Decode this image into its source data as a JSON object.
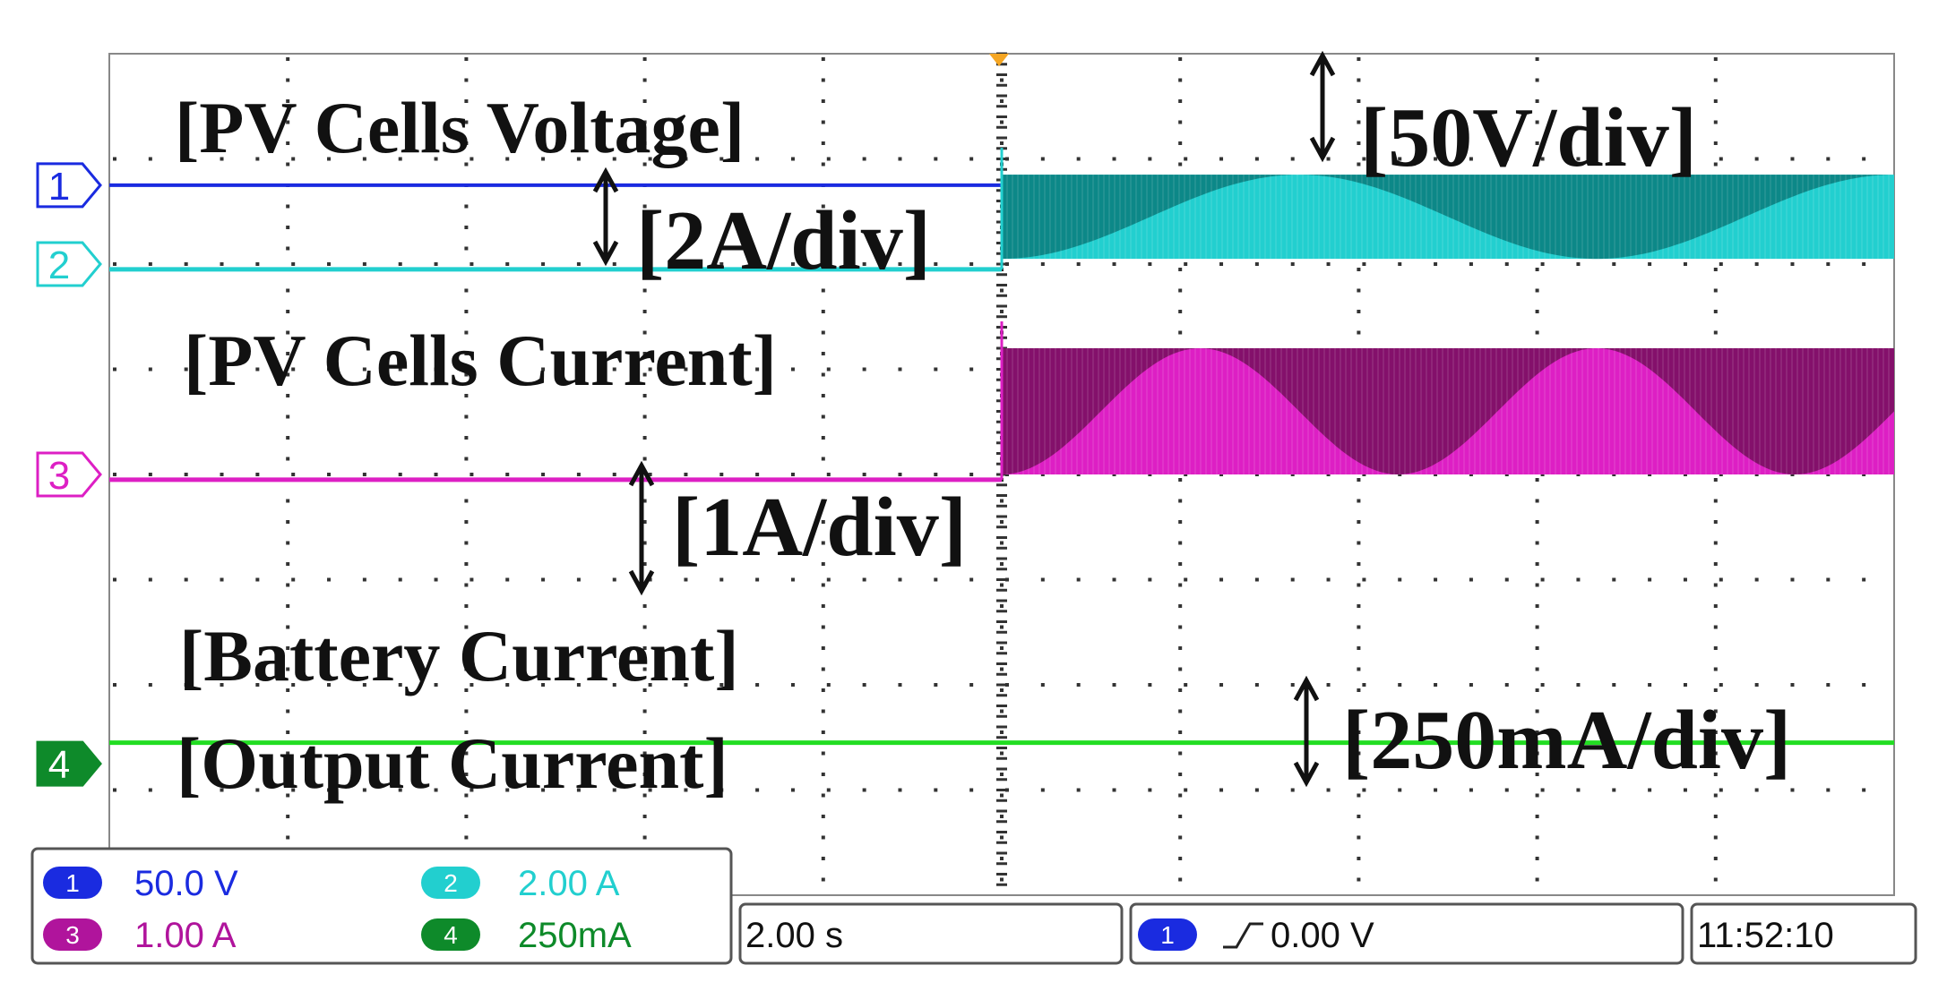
{
  "chart_data": {
    "type": "line",
    "title": "",
    "xlabel": "",
    "ylabel": "",
    "grid": true,
    "divisions": {
      "x": 10,
      "y": 8
    },
    "trigger_division": 5,
    "channels": [
      {
        "id": "1",
        "name": "PV Cells Voltage",
        "scale": "50.0 V",
        "label": "[PV Cells Voltage]",
        "div_label": "[50V/div]",
        "color": "#1a2be0",
        "dark_color": "#0b1a9a",
        "offset_div": 6.75,
        "before": {
          "level_div": 0
        },
        "after": {
          "level_div": 0
        }
      },
      {
        "id": "2",
        "name": "PV Cells Current",
        "scale": "2.00 A",
        "label": "[PV Cells Current]",
        "div_label": "[2A/div]",
        "color": "#22cfcf",
        "dark_color": "#0a7f80",
        "offset_div": 6.0,
        "before": {
          "level_div": -0.05
        },
        "after": {
          "low_div": 0.05,
          "high_div": 0.85,
          "envelope_periods": 1.5
        }
      },
      {
        "id": "3",
        "name": "Battery Current",
        "scale": "1.00 A",
        "label": "[Battery Current]",
        "div_label": "[1A/div]",
        "color": "#dd1fc4",
        "dark_color": "#7a0e62",
        "offset_div": 4.0,
        "before": {
          "level_div": -0.05
        },
        "after": {
          "low_div": 0,
          "high_div": 1.2,
          "envelope_periods": 2.25
        }
      },
      {
        "id": "4",
        "name": "Output Current",
        "scale": "250mA",
        "label": "[Output Current]",
        "div_label": "[250mA/div]",
        "color": "#22dd22",
        "dark_color": "#0e8a2a",
        "offset_div": 1.25,
        "before": {
          "level_div": 0.2
        },
        "after": {
          "level_div": 0.2
        }
      }
    ],
    "timebase": "2.00 s",
    "trigger": {
      "channel": "1",
      "level": "0.00 V"
    },
    "clock": "11:52:10"
  }
}
